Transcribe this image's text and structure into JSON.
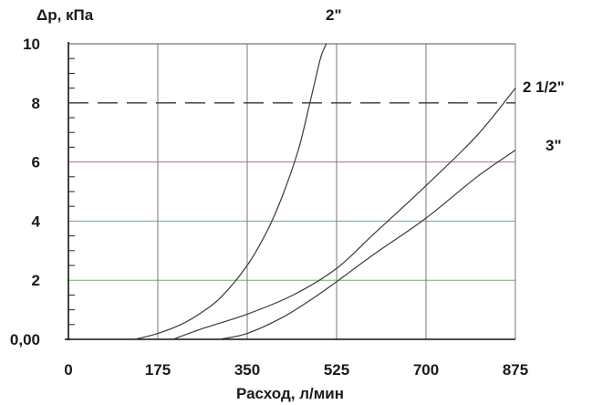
{
  "chart_data": {
    "type": "line",
    "ylabel": "Δp, кПа",
    "xlabel": "Расход, л/мин",
    "xlim": [
      0,
      875
    ],
    "ylim": [
      0,
      10
    ],
    "x_ticks": [
      0,
      175,
      350,
      525,
      700,
      875
    ],
    "x_tick_labels": [
      "0",
      "175",
      "350",
      "525",
      "700",
      "875"
    ],
    "y_ticks": [
      0,
      2,
      4,
      6,
      8,
      10
    ],
    "y_tick_labels": [
      "0,00",
      "2",
      "4",
      "6",
      "8",
      "10"
    ],
    "reference_line": {
      "y": 8,
      "style": "dashed"
    },
    "series": [
      {
        "name": "2\"",
        "x": [
          130,
          175,
          220,
          260,
          300,
          350,
          390,
          420,
          450,
          470,
          485,
          495,
          505
        ],
        "y": [
          0,
          0.2,
          0.5,
          0.9,
          1.45,
          2.5,
          3.7,
          4.9,
          6.4,
          7.8,
          8.9,
          9.6,
          10
        ]
      },
      {
        "name": "2 1/2\"",
        "x": [
          205,
          260,
          350,
          440,
          525,
          600,
          700,
          800,
          875
        ],
        "y": [
          0,
          0.35,
          0.85,
          1.5,
          2.4,
          3.6,
          5.2,
          6.9,
          8.5
        ]
      },
      {
        "name": "3\"",
        "x": [
          295,
          350,
          420,
          480,
          525,
          600,
          700,
          800,
          875
        ],
        "y": [
          0,
          0.2,
          0.75,
          1.4,
          1.95,
          2.9,
          4.1,
          5.5,
          6.4
        ]
      }
    ]
  }
}
